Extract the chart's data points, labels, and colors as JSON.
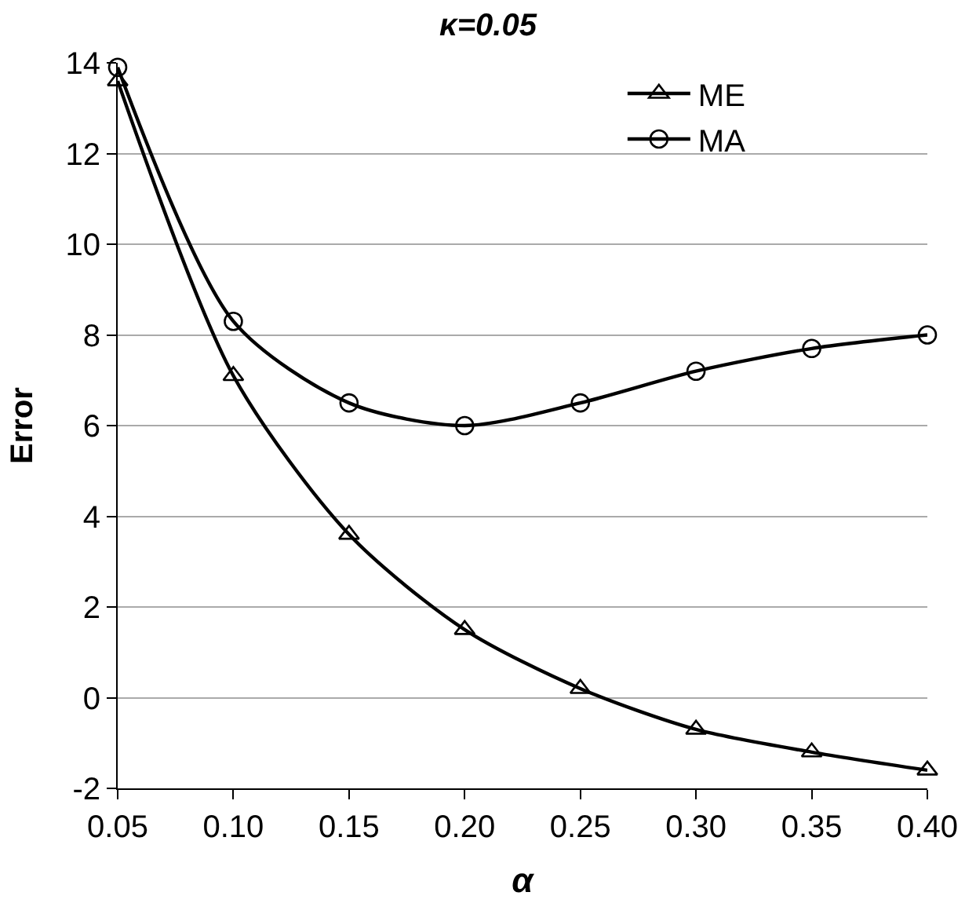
{
  "chart_data": {
    "type": "line",
    "title": "κ=0.05",
    "xlabel": "α",
    "ylabel": "Error",
    "x": [
      0.05,
      0.1,
      0.15,
      0.2,
      0.25,
      0.3,
      0.35,
      0.4
    ],
    "series": [
      {
        "name": "ME",
        "color": "#000000",
        "marker": "triangle",
        "values": [
          13.6,
          7.1,
          3.6,
          1.5,
          0.2,
          -0.7,
          -1.2,
          -1.6
        ]
      },
      {
        "name": "MA",
        "color": "#000000",
        "marker": "circle",
        "values": [
          13.9,
          8.3,
          6.5,
          6.0,
          6.5,
          7.2,
          7.7,
          8.0
        ]
      }
    ],
    "xlim": [
      0.05,
      0.4
    ],
    "xticks": [
      {
        "value": 0.05,
        "label": "0.05"
      },
      {
        "value": 0.1,
        "label": "0.10"
      },
      {
        "value": 0.15,
        "label": "0.15"
      },
      {
        "value": 0.2,
        "label": "0.20"
      },
      {
        "value": 0.25,
        "label": "0.25"
      },
      {
        "value": 0.3,
        "label": "0.30"
      },
      {
        "value": 0.35,
        "label": "0.35"
      },
      {
        "value": 0.4,
        "label": "0.40"
      }
    ],
    "ylim": [
      -2,
      14
    ],
    "yticks": [
      -2,
      0,
      2,
      4,
      6,
      8,
      10,
      12,
      14
    ],
    "grid": "y",
    "legend": "top right",
    "line_style": "solid"
  }
}
